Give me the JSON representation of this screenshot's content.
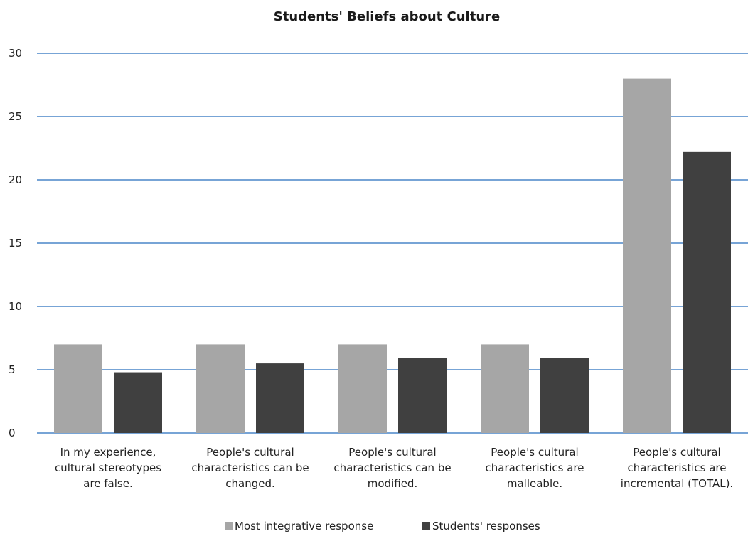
{
  "chart_data": {
    "type": "bar",
    "title": "Students' Beliefs about Culture",
    "categories": [
      [
        "In my experience,",
        "cultural stereotypes",
        "are false."
      ],
      [
        "People's cultural",
        "characteristics can be",
        "changed."
      ],
      [
        "People's cultural",
        "characteristics can be",
        "modified."
      ],
      [
        "People's cultural",
        "characteristics are",
        "malleable."
      ],
      [
        "People's cultural",
        "characteristics are",
        "incremental (TOTAL)."
      ]
    ],
    "series": [
      {
        "name": "Most integrative response",
        "color": "#a6a6a6",
        "values": [
          7,
          7,
          7,
          7,
          28
        ]
      },
      {
        "name": "Students' responses",
        "color": "#404040",
        "values": [
          4.8,
          5.5,
          5.9,
          5.9,
          22.2
        ]
      }
    ],
    "ylim": [
      0,
      30
    ],
    "yticks": [
      0,
      5,
      10,
      15,
      20,
      25,
      30
    ],
    "grid": true,
    "legend_position": "bottom"
  }
}
